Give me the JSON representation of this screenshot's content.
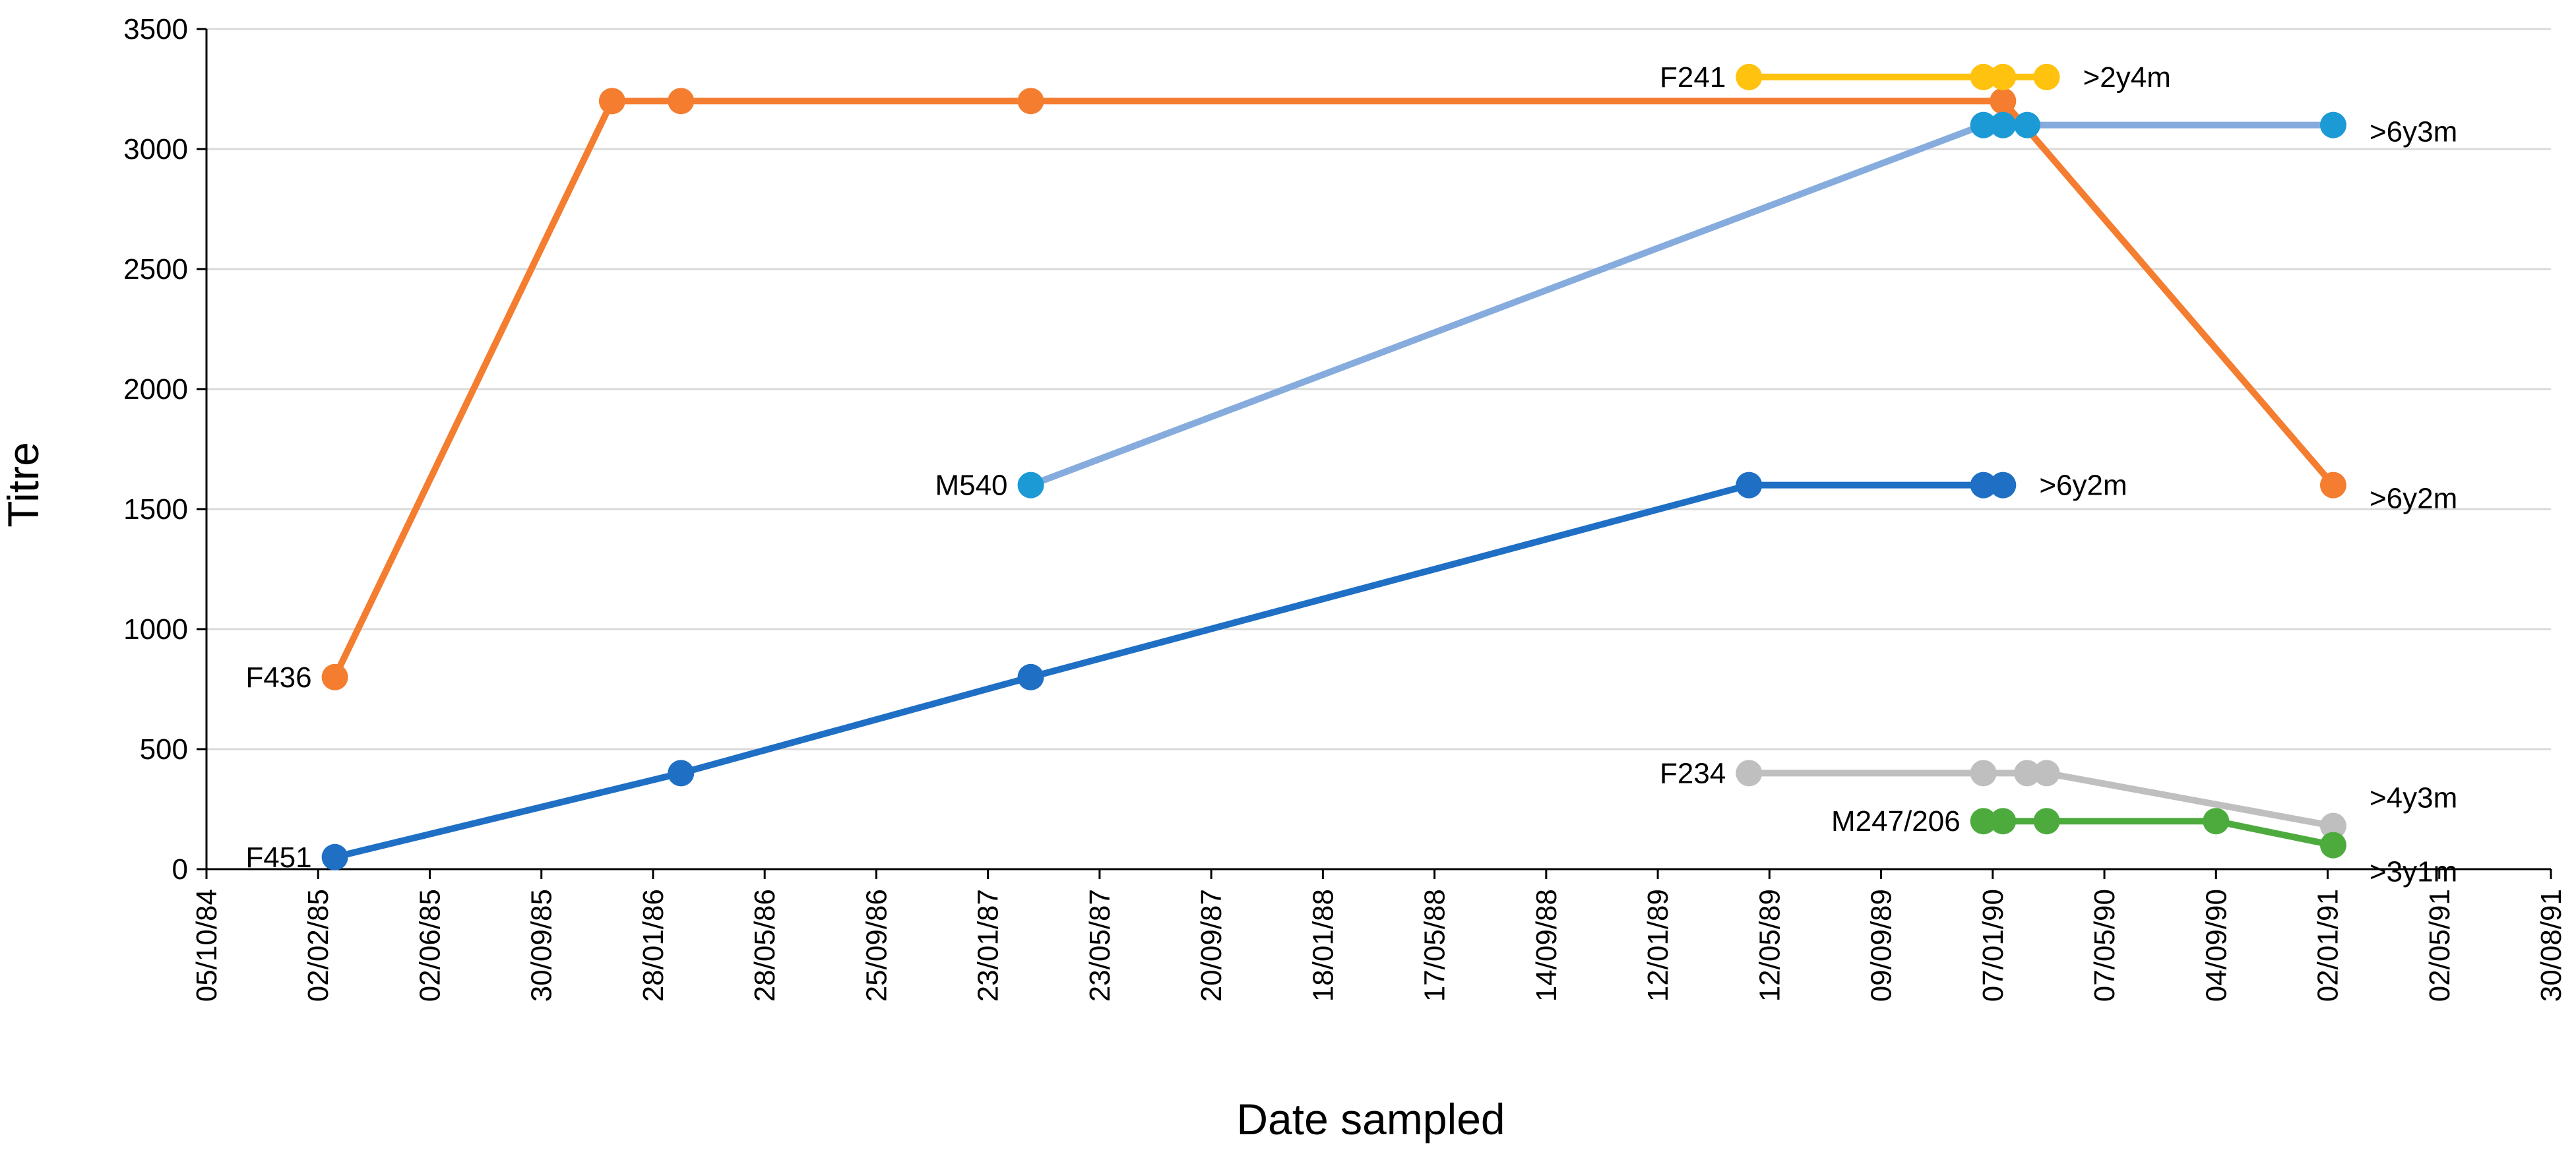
{
  "chart_data": {
    "type": "line",
    "title": "",
    "xlabel": "Date sampled",
    "ylabel": "Titre",
    "ylim": [
      0,
      3500
    ],
    "yticks": [
      0,
      500,
      1000,
      1500,
      2000,
      2500,
      3000,
      3500
    ],
    "xlim": [
      "1984-10-05",
      "1991-08-30"
    ],
    "xticks": [
      "05/10/84",
      "02/02/85",
      "02/06/85",
      "30/09/85",
      "28/01/86",
      "28/05/86",
      "25/09/86",
      "23/01/87",
      "23/05/87",
      "20/09/87",
      "18/01/88",
      "17/05/88",
      "14/09/88",
      "12/01/89",
      "12/05/89",
      "09/09/89",
      "07/01/90",
      "07/05/90",
      "04/09/90",
      "02/01/91",
      "02/05/91",
      "30/08/91"
    ],
    "grid": true,
    "series": [
      {
        "name": "F436",
        "color": "#F47D30",
        "end_label": ">6y2m",
        "points": [
          {
            "date": "1985-02-20",
            "value": 800
          },
          {
            "date": "1985-12-15",
            "value": 3200
          },
          {
            "date": "1986-02-27",
            "value": 3200
          },
          {
            "date": "1987-03-10",
            "value": 3200
          },
          {
            "date": "1990-01-18",
            "value": 3200
          },
          {
            "date": "1991-01-08",
            "value": 1600
          }
        ]
      },
      {
        "name": "F451",
        "color": "#1F6FC5",
        "end_label": ">6y2m",
        "points": [
          {
            "date": "1985-02-20",
            "value": 50
          },
          {
            "date": "1986-02-27",
            "value": 400
          },
          {
            "date": "1987-03-10",
            "value": 800
          },
          {
            "date": "1989-04-20",
            "value": 1600
          },
          {
            "date": "1989-12-28",
            "value": 1600
          },
          {
            "date": "1990-01-18",
            "value": 1600
          }
        ]
      },
      {
        "name": "M540",
        "color": "#86ACDE",
        "marker_color": "#1B9AD6",
        "end_label": ">6y3m",
        "points": [
          {
            "date": "1987-03-10",
            "value": 1600
          },
          {
            "date": "1989-12-28",
            "value": 3100
          },
          {
            "date": "1990-01-18",
            "value": 3100
          },
          {
            "date": "1990-02-13",
            "value": 3100
          },
          {
            "date": "1991-01-08",
            "value": 3100
          }
        ]
      },
      {
        "name": "F241",
        "color": "#FFC20E",
        "end_label": ">2y4m",
        "points": [
          {
            "date": "1989-04-20",
            "value": 3300
          },
          {
            "date": "1989-12-28",
            "value": 3300
          },
          {
            "date": "1990-01-18",
            "value": 3300
          },
          {
            "date": "1990-03-06",
            "value": 3300
          }
        ]
      },
      {
        "name": "F234",
        "color": "#BFBFBF",
        "end_label": ">4y3m",
        "points": [
          {
            "date": "1989-04-20",
            "value": 400
          },
          {
            "date": "1989-12-28",
            "value": 400
          },
          {
            "date": "1990-02-13",
            "value": 400
          },
          {
            "date": "1990-03-06",
            "value": 400
          },
          {
            "date": "1991-01-08",
            "value": 180
          }
        ]
      },
      {
        "name": "M247/206",
        "color": "#4DAB3E",
        "end_label": ">3y1m",
        "points": [
          {
            "date": "1989-12-28",
            "value": 200
          },
          {
            "date": "1990-01-18",
            "value": 200
          },
          {
            "date": "1990-03-06",
            "value": 200
          },
          {
            "date": "1990-09-04",
            "value": 200
          },
          {
            "date": "1991-01-08",
            "value": 100
          }
        ]
      }
    ]
  }
}
